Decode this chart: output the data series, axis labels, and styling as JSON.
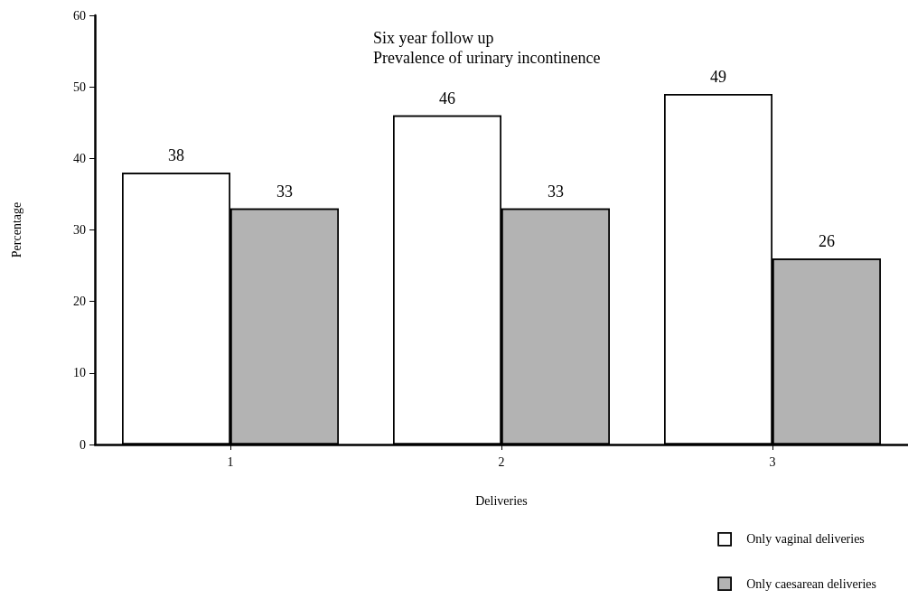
{
  "chart_data": {
    "type": "bar",
    "title": "Six year follow up",
    "subtitle": "Prevalence of urinary incontinence",
    "xlabel": "Deliveries",
    "ylabel": "Percentage",
    "categories": [
      "1",
      "2",
      "3"
    ],
    "series": [
      {
        "name": "Only vaginal deliveries",
        "color": "#ffffff",
        "values": [
          38,
          46,
          49
        ]
      },
      {
        "name": "Only caesarean deliveries",
        "color": "#b3b3b3",
        "values": [
          33,
          33,
          26
        ]
      }
    ],
    "ylim": [
      0,
      60
    ],
    "yticks": [
      0,
      10,
      20,
      30,
      40,
      50,
      60
    ],
    "grid": false,
    "legend": "bottom right",
    "data_labels": true
  }
}
